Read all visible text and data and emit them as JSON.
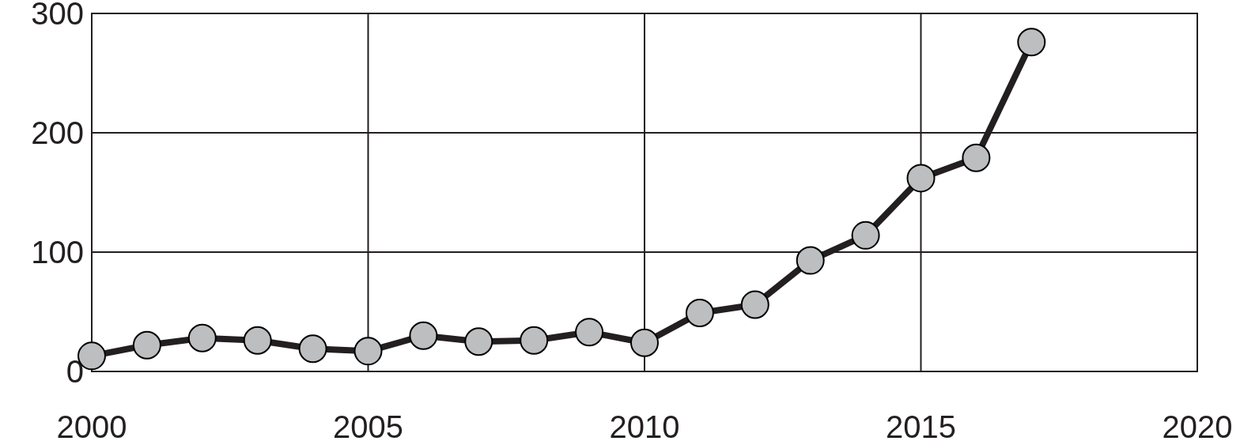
{
  "chart_data": {
    "type": "line",
    "x": [
      2000,
      2001,
      2002,
      2003,
      2004,
      2005,
      2006,
      2007,
      2008,
      2009,
      2010,
      2011,
      2012,
      2013,
      2014,
      2015,
      2016,
      2017
    ],
    "series": [
      {
        "color": "#231f20",
        "values": [
          13,
          22,
          28,
          26,
          19,
          17,
          30,
          25,
          26,
          33,
          24,
          49,
          56,
          93,
          114,
          162,
          179,
          276
        ]
      }
    ],
    "xlim": [
      2000,
      2020
    ],
    "xticks": [
      2000,
      2005,
      2010,
      2015,
      2020
    ],
    "ylim": [
      0,
      300
    ],
    "yticks": [
      0,
      100,
      200,
      300
    ],
    "grid": true,
    "marker": "circle",
    "line_style": "solid"
  }
}
